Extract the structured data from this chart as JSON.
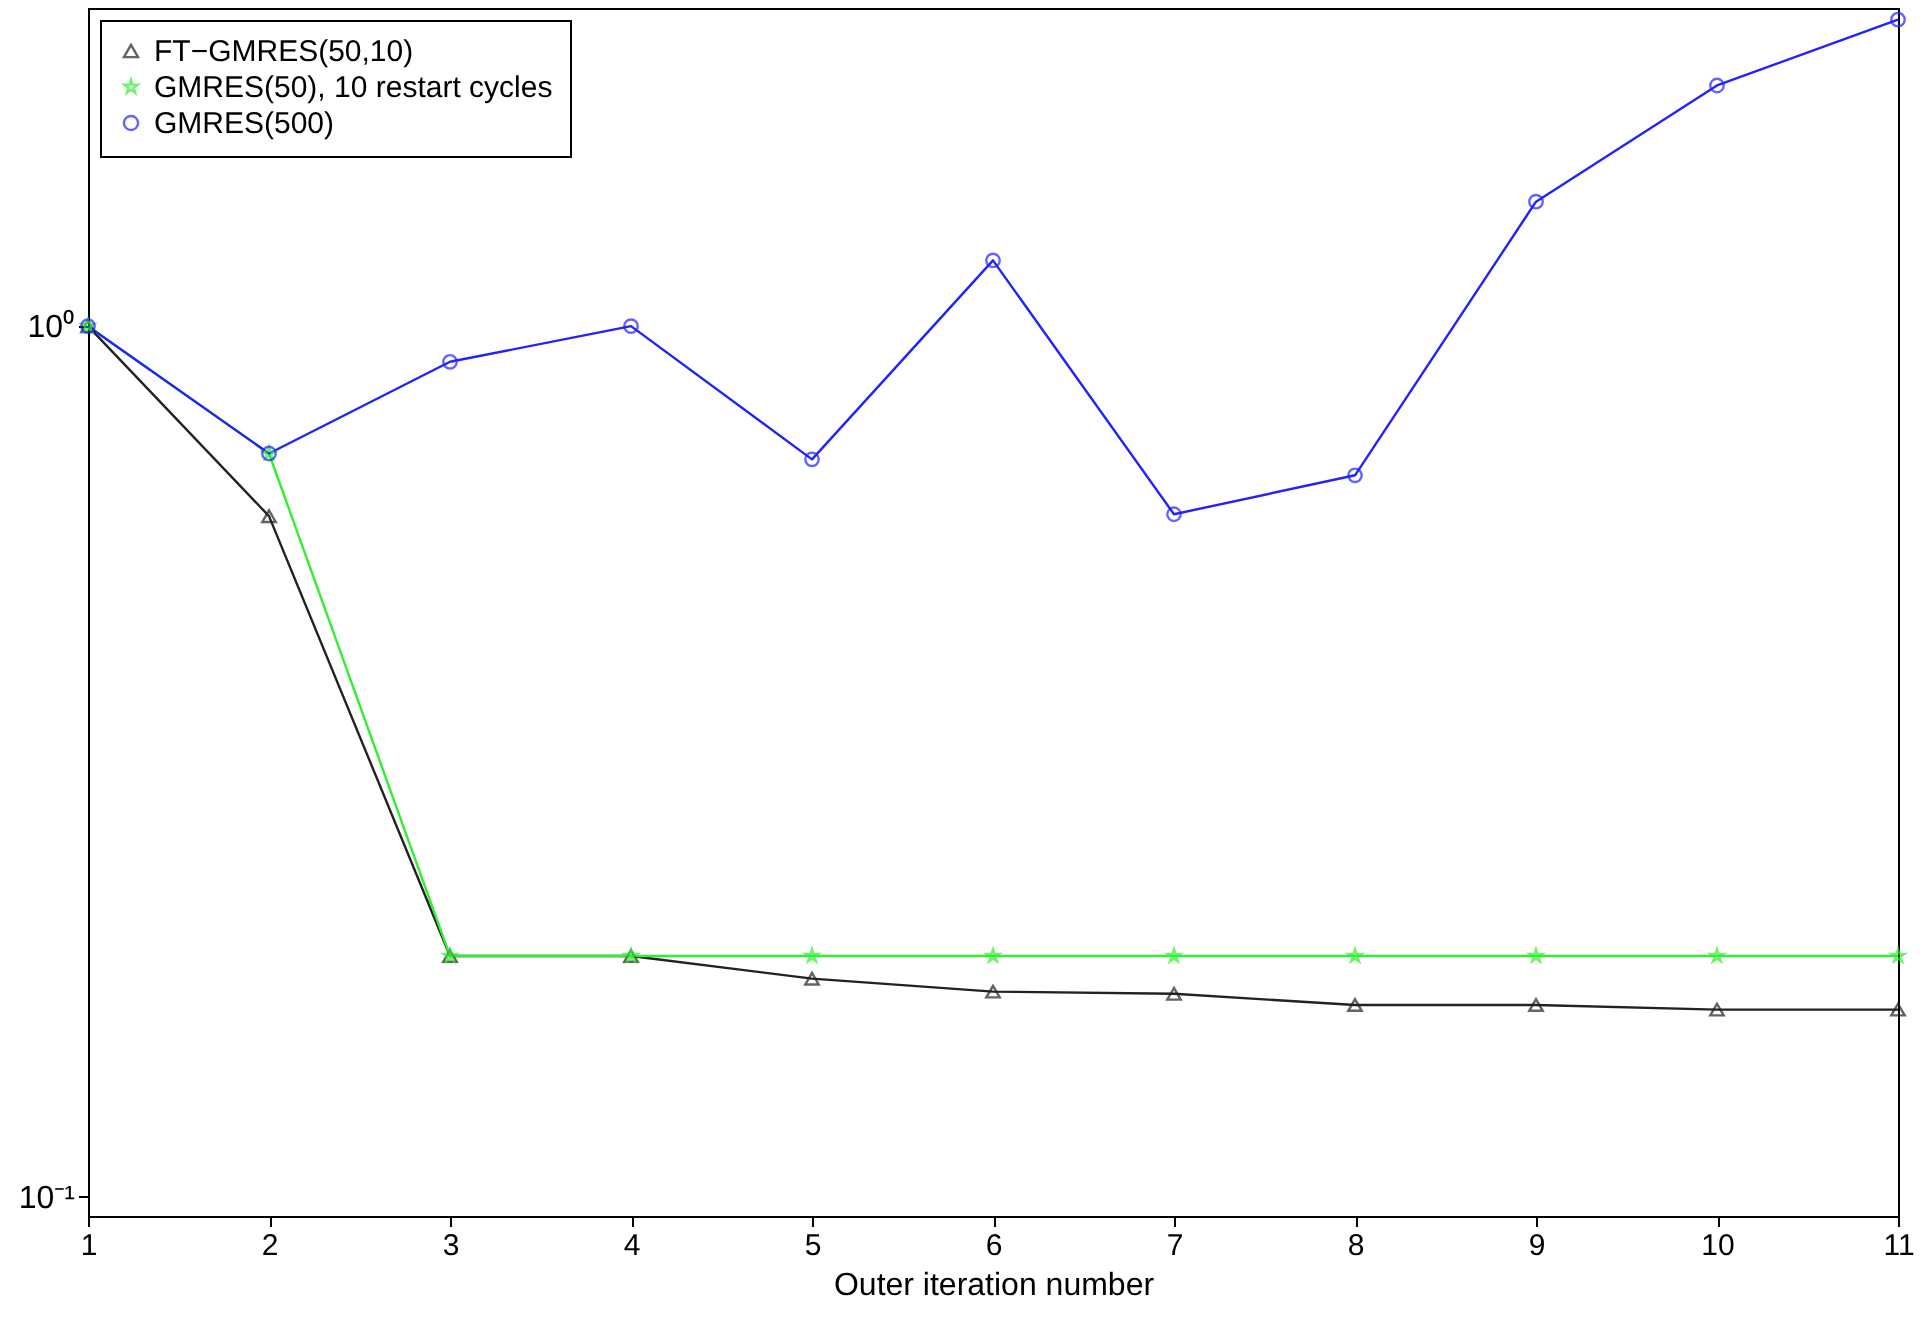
{
  "chart_data": {
    "type": "line",
    "xlabel": "Outer iteration number",
    "x": [
      1,
      2,
      3,
      4,
      5,
      6,
      7,
      8,
      9,
      10,
      11
    ],
    "series": [
      {
        "name": "FT−GMRES(50,10)",
        "color": "#222222",
        "marker": "triangle",
        "values": [
          1.0,
          0.605,
          0.189,
          0.189,
          0.178,
          0.172,
          0.171,
          0.166,
          0.166,
          0.164,
          0.164
        ]
      },
      {
        "name": "GMRES(50), 10 restart cycles",
        "color": "#33ee33",
        "marker": "star",
        "values": [
          1.0,
          0.714,
          0.189,
          0.189,
          0.189,
          0.189,
          0.189,
          0.189,
          0.189,
          0.189,
          0.189
        ]
      },
      {
        "name": "GMRES(500)",
        "color": "#2222ff",
        "marker": "circle",
        "values": [
          1.0,
          0.714,
          0.91,
          1.0,
          0.703,
          1.19,
          0.608,
          0.674,
          1.39,
          1.89,
          2.25
        ]
      }
    ],
    "log": "y",
    "xlim": [
      1,
      11
    ],
    "xticks": [
      1,
      2,
      3,
      4,
      5,
      6,
      7,
      8,
      9,
      10,
      11
    ],
    "ylim": [
      0.095,
      2.32
    ],
    "yticks": [
      {
        "value": 0.1,
        "label": "10⁻¹"
      },
      {
        "value": 1,
        "label": "10⁰"
      }
    ],
    "grid": false,
    "legend": "top left"
  }
}
